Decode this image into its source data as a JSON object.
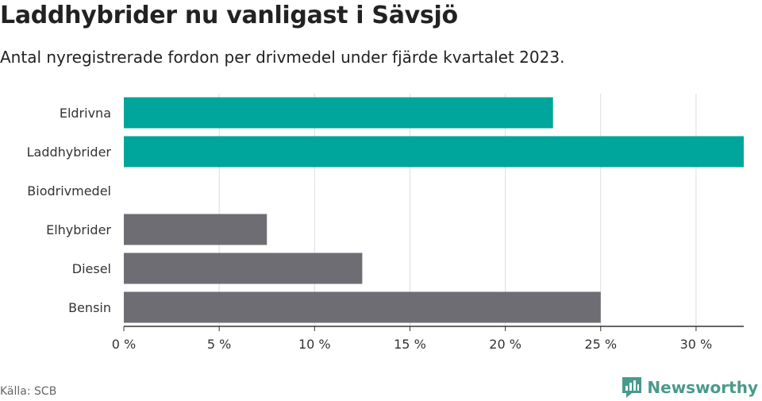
{
  "header": {
    "title": "Laddhybrider nu vanligast i Sävsjö",
    "subtitle": "Antal nyregistrerade fordon per drivmedel under fjärde kvartalet 2023."
  },
  "footer": {
    "source": "Källa: SCB",
    "brand": "Newsworthy"
  },
  "colors": {
    "highlight": "#00a59b",
    "default": "#6e6d74",
    "grid": "#dcdcdc",
    "axis": "#333333"
  },
  "chart_data": {
    "type": "bar",
    "orientation": "horizontal",
    "title": "Laddhybrider nu vanligast i Sävsjö",
    "subtitle": "Antal nyregistrerade fordon per drivmedel under fjärde kvartalet 2023.",
    "categories": [
      "Eldrivna",
      "Laddhybrider",
      "Biodrivmedel",
      "Elhybrider",
      "Diesel",
      "Bensin"
    ],
    "values": [
      22.5,
      32.5,
      0,
      7.5,
      12.5,
      25
    ],
    "highlighted": [
      true,
      true,
      false,
      false,
      false,
      false
    ],
    "unit": "%",
    "xlim": [
      0,
      32.5
    ],
    "xticks": [
      0,
      5,
      10,
      15,
      20,
      25,
      30
    ],
    "xtick_labels": [
      "0 %",
      "5 %",
      "10 %",
      "15 %",
      "20 %",
      "25 %",
      "30 %"
    ],
    "xlabel": "",
    "ylabel": "",
    "grid": true
  }
}
